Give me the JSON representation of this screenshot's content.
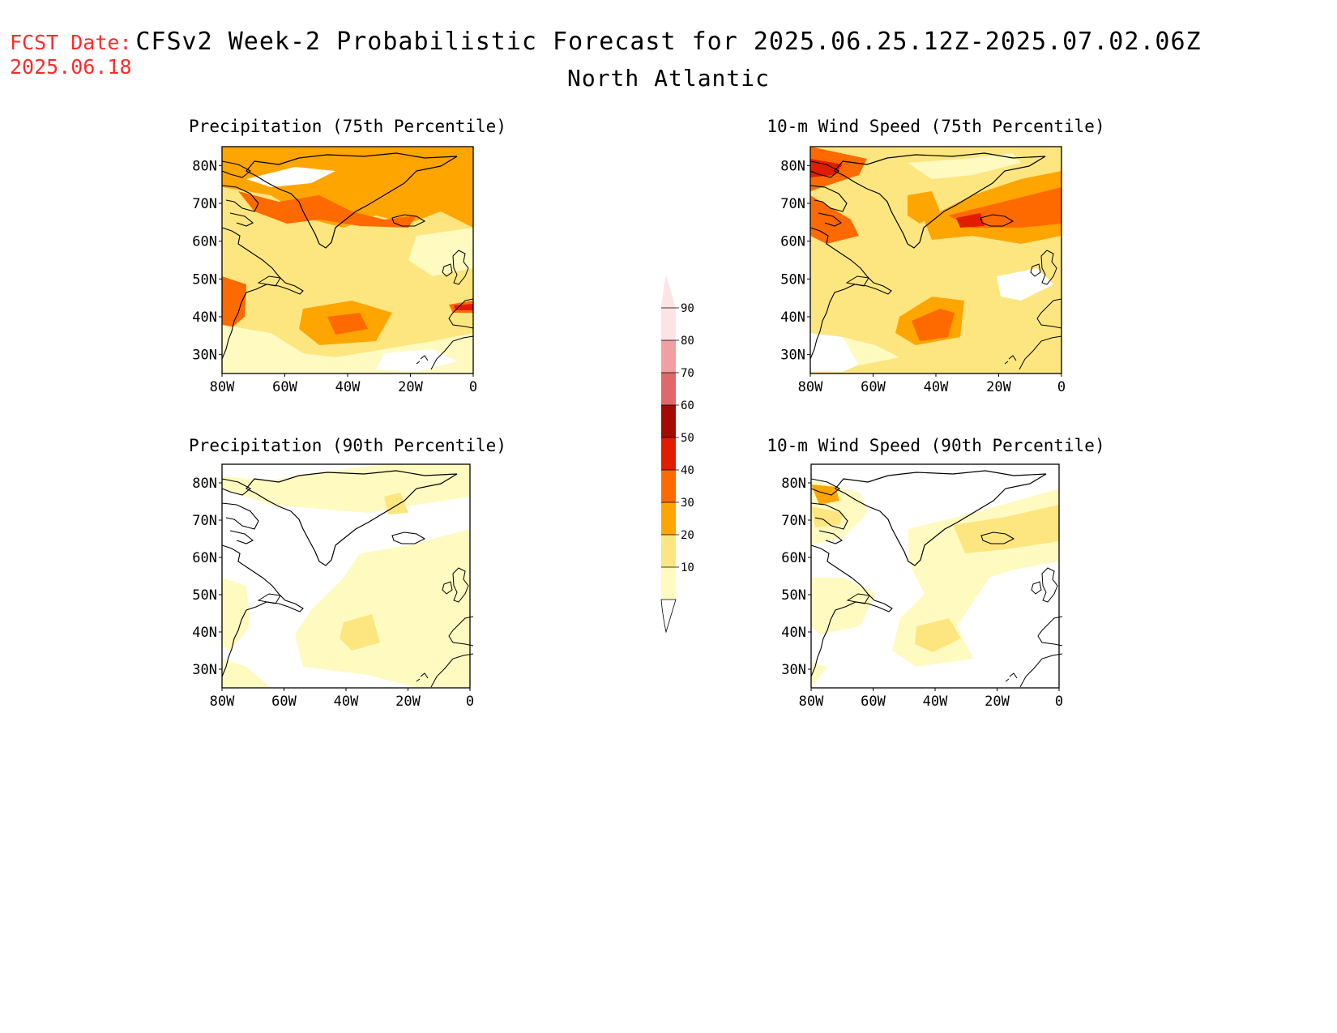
{
  "header": {
    "fcst_label": "FCST Date:",
    "fcst_date": "2025.06.18",
    "title": "CFSv2 Week-2 Probabilistic Forecast for 2025.06.25.12Z-2025.07.02.06Z",
    "subtitle": "North Atlantic"
  },
  "panels": [
    {
      "title": "Precipitation (75th Percentile)"
    },
    {
      "title": "10-m Wind Speed (75th Percentile)"
    },
    {
      "title": "Precipitation (90th Percentile)"
    },
    {
      "title": "10-m Wind Speed (90th Percentile)"
    }
  ],
  "axes": {
    "lat_labels": [
      "80N",
      "70N",
      "60N",
      "50N",
      "40N",
      "30N"
    ],
    "lon_labels": [
      "80W",
      "60W",
      "40W",
      "20W",
      "0"
    ]
  },
  "colorbar": {
    "levels": [
      "10",
      "20",
      "30",
      "40",
      "50",
      "60",
      "70",
      "80",
      "90"
    ],
    "colors": [
      "#fffac0",
      "#fde680",
      "#ffa500",
      "#ff6a00",
      "#e21c00",
      "#a40a00",
      "#df6868",
      "#f0a0a0",
      "#fde4e4"
    ]
  }
}
